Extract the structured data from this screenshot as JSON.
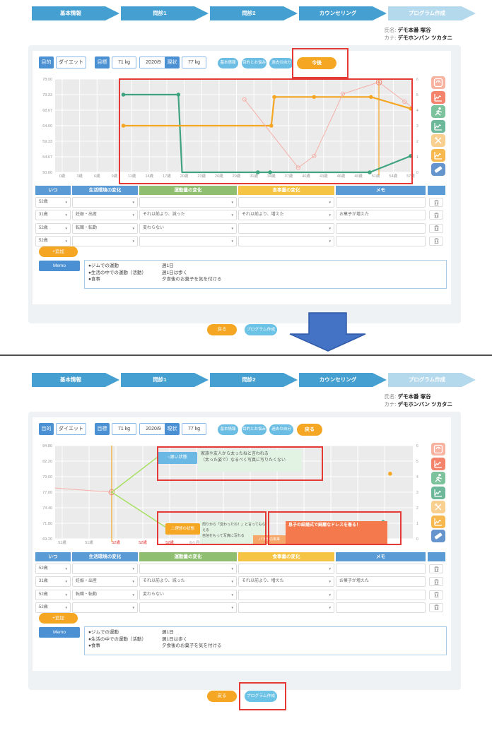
{
  "stepper": [
    "基本情報",
    "問診1",
    "問診2",
    "カウンセリング",
    "プログラム作成"
  ],
  "user": {
    "name_label": "氏名:",
    "name": "デモ本番 塚谷",
    "kana_label": "カナ:",
    "kana": "デモホンバン ツカタニ"
  },
  "colors": {
    "accent_blue": "#4a90d2",
    "pill_blue": "#6bbde3",
    "orange": "#f5a623",
    "green_header": "#8fbe70",
    "yellow_header": "#f6c444",
    "red_highlight": "#e53935",
    "arrow_blue": "#4472c4"
  },
  "sections": [
    {
      "controls": {
        "purpose_label": "目的",
        "purpose_value": "ダイエット",
        "goal_label": "目標",
        "goal_weight": "71 kg",
        "goal_date": "2020/9",
        "current_label": "現状",
        "current_weight": "77 kg",
        "pills": [
          "基本情報",
          "目的とお悩み",
          "過去の自分"
        ],
        "action_label": "今後"
      }
    },
    {
      "controls": {
        "purpose_label": "目的",
        "purpose_value": "ダイエット",
        "goal_label": "目標",
        "goal_weight": "71 kg",
        "goal_date": "2020/9",
        "current_label": "現状",
        "current_weight": "77 kg",
        "pills": [
          "基本情報",
          "目的とお悩み",
          "過去の自分"
        ],
        "action_label": "戻る"
      },
      "annotations": {
        "bad_label": "○悪い状態",
        "bad_lines": [
          "家族や友人から太ったねと言われる",
          "（太った姿で）なるべく写真に写りたくない"
        ],
        "ideal_label": "△理想の状態",
        "ideal_lines": [
          "周りから「変わったね！」と言ってもらえる",
          "自信をもって写真に写れる"
        ],
        "tag": "バラ色の未来",
        "goal_box": "息子の結婚式で綺麗なドレスを着る！"
      }
    }
  ],
  "icons": [
    {
      "name": "scale-icon",
      "color": "#f7b2a0",
      "glyph": "scale"
    },
    {
      "name": "weight-chart-icon",
      "color": "#f4836c",
      "glyph": "chart"
    },
    {
      "name": "runner-icon",
      "color": "#7cc29c",
      "glyph": "runner"
    },
    {
      "name": "exercise-chart-icon",
      "color": "#6db89a",
      "glyph": "chart"
    },
    {
      "name": "meal-icon",
      "color": "#f8cf8e",
      "glyph": "meal"
    },
    {
      "name": "meal-chart-icon",
      "color": "#f7b84f",
      "glyph": "chart"
    },
    {
      "name": "eraser-icon",
      "color": "#6595cc",
      "glyph": "eraser"
    }
  ],
  "table": {
    "headers": [
      "いつ",
      "生活環境の変化",
      "運動量の変化",
      "食事量の変化",
      "メモ",
      ""
    ],
    "rows": [
      {
        "when": "52歳",
        "life": "",
        "exercise": "",
        "meal": "",
        "memo": ""
      },
      {
        "when": "31歳",
        "life": "妊娠・出産",
        "exercise": "それ以前より、減った",
        "meal": "それ以前より、増えた",
        "memo": "お菓子が増えた"
      },
      {
        "when": "52歳",
        "life": "転職・転勤",
        "exercise": "変わらない",
        "meal": "",
        "memo": ""
      },
      {
        "when": "52歳",
        "life": "",
        "exercise": "",
        "meal": "",
        "memo": ""
      }
    ],
    "add_label": "+追加"
  },
  "memo": {
    "label": "Memo",
    "lines": [
      {
        "item": "●ジムでの運動",
        "value": "週1日"
      },
      {
        "item": "●生活の中での運動（活動）",
        "value": "週1日は歩く"
      },
      {
        "item": "●食事",
        "value": "夕食後のお菓子を気を付ける"
      }
    ]
  },
  "footer": {
    "back_label": "戻る",
    "create_label": "プログラム作成"
  },
  "chart_data": [
    {
      "type": "line",
      "x_mode": "age",
      "x_max": 57,
      "y_left_ticks": [
        "78.00",
        "73.33",
        "68.67",
        "64.00",
        "59.33",
        "54.67",
        "50.00"
      ],
      "y_right_ticks": [
        "6",
        "5",
        "4",
        "3",
        "2",
        "1",
        "0"
      ],
      "ymin": 0,
      "ymax": 6,
      "x_ticks": [
        {
          "t": "0歳"
        },
        {
          "t": "3歳"
        },
        {
          "t": "6歳"
        },
        {
          "t": "9歳"
        },
        {
          "t": "11歳"
        },
        {
          "t": "14歳"
        },
        {
          "t": "17歳"
        },
        {
          "t": "20歳"
        },
        {
          "t": "23歳"
        },
        {
          "t": "26歳"
        },
        {
          "t": "29歳"
        },
        {
          "t": "31歳"
        },
        {
          "t": "34歳"
        },
        {
          "t": "37歳"
        },
        {
          "t": "40歳"
        },
        {
          "t": "43歳"
        },
        {
          "t": "46歳"
        },
        {
          "t": "48歳"
        },
        {
          "t": "51歳"
        },
        {
          "t": "54歳"
        },
        {
          "t": "57歳"
        }
      ],
      "vline": {
        "x": 51.8,
        "color": "#f5a623"
      },
      "series": [
        {
          "name": "運動量",
          "color": "#3fa37f",
          "width": 2.2,
          "points": [
            [
              10,
              5
            ],
            [
              19,
              5
            ],
            [
              19.6,
              0
            ],
            [
              50.3,
              0
            ],
            [
              57,
              1.05
            ]
          ],
          "dots": [
            [
              10,
              5
            ],
            [
              19,
              5
            ],
            [
              32,
              0
            ],
            [
              34,
              0
            ],
            [
              50.3,
              0
            ],
            [
              57,
              1.05
            ]
          ]
        },
        {
          "name": "食事量",
          "color": "#f5a623",
          "width": 2.2,
          "points": [
            [
              10,
              3
            ],
            [
              34.2,
              3
            ],
            [
              34.7,
              4.85
            ],
            [
              50.5,
              4.85
            ],
            [
              57,
              4.1
            ]
          ],
          "dots": [
            [
              10,
              3
            ],
            [
              34.2,
              3
            ],
            [
              34.7,
              4.85
            ],
            [
              41.2,
              4.85
            ],
            [
              50.5,
              4.85
            ],
            [
              57,
              4.1
            ]
          ]
        },
        {
          "name": "体重",
          "color": "#f5b0a8",
          "width": 1,
          "points": [
            [
              29.8,
              4.7
            ],
            [
              38.6,
              0.3
            ],
            [
              41.2,
              1.05
            ],
            [
              45.9,
              5.05
            ],
            [
              51.8,
              5.8
            ],
            [
              56,
              4.55
            ],
            [
              57,
              4.25
            ]
          ],
          "open_dots": [
            [
              29.8,
              4.7
            ],
            [
              38.6,
              0.3
            ],
            [
              41.2,
              1.05
            ],
            [
              45.9,
              5.05
            ],
            [
              56,
              4.55
            ]
          ],
          "ring_dots": [
            [
              51.8,
              5.8
            ]
          ]
        }
      ]
    },
    {
      "type": "line",
      "x_mode": "frac",
      "x_max": 1,
      "y_left_ticks": [
        "84.80",
        "82.20",
        "79.60",
        "77.00",
        "74.40",
        "71.80",
        "69.20"
      ],
      "y_right_ticks": [
        "6",
        "5",
        "4",
        "3",
        "2",
        "1",
        "0"
      ],
      "ymin": 69.2,
      "ymax": 84.8,
      "x_ticks": [
        {
          "t": "51歳",
          "f": 0
        },
        {
          "t": "51歳",
          "f": 0.0771
        },
        {
          "t": "52歳",
          "f": 0.1542,
          "red": true
        },
        {
          "t": "52歳",
          "f": 0.2313,
          "red": true
        },
        {
          "t": "52歳",
          "f": 0.3084,
          "red": true
        },
        {
          "t": "6ヶ月後",
          "f": 0.3855
        }
      ],
      "grid_step": 0.0771,
      "vline": {
        "x": 0.142,
        "color": "#f5a623"
      },
      "series": [
        {
          "name": "体重実績",
          "color": "#f5b0a8",
          "width": 1,
          "points": [
            [
              -0.0203,
              77.7
            ],
            [
              0.142,
              77.0
            ]
          ],
          "ring_dots": [
            [
              0.142,
              77.0
            ]
          ]
        },
        {
          "name": "悪い状態への分岐",
          "color": "#a8e063",
          "width": 1.5,
          "points": [
            [
              0.142,
              77.0
            ],
            [
              0.274,
              82.9
            ]
          ]
        },
        {
          "name": "理想の状態への分岐",
          "color": "#a8e063",
          "width": 1.5,
          "points": [
            [
              0.142,
              77.0
            ],
            [
              0.298,
              71.1
            ]
          ]
        },
        {
          "name": "目標食事量",
          "color": "#f5a623",
          "width": 0,
          "points": [],
          "dots": [
            [
              0.941,
              80.1
            ]
          ]
        },
        {
          "name": "目標運動量",
          "color": "#3fa37f",
          "width": 0,
          "points": [],
          "dots": [
            [
              0.921,
              72.0
            ]
          ]
        }
      ]
    }
  ]
}
